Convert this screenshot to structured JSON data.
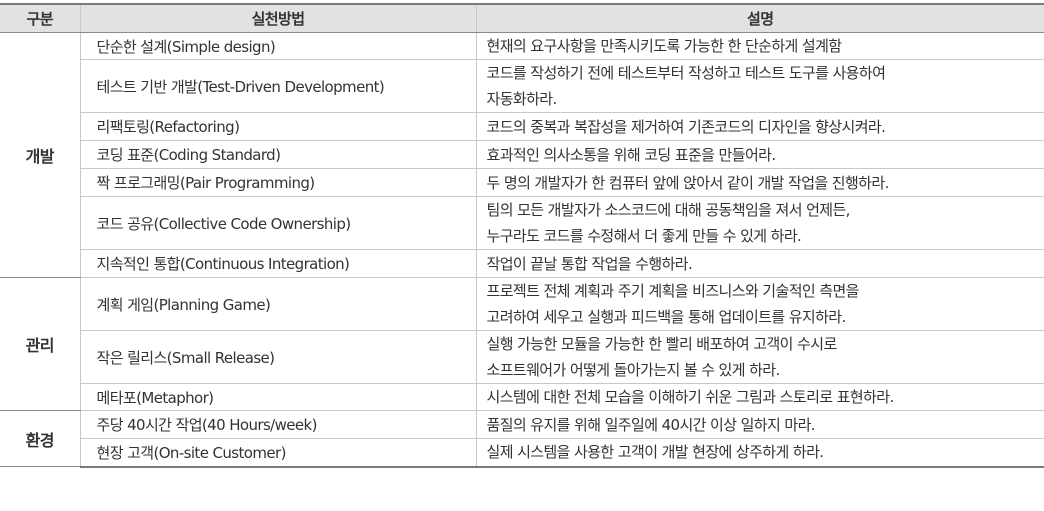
{
  "headers": [
    "구분",
    "실천방법",
    "설명"
  ],
  "groups": [
    {
      "category": "개발",
      "rows": [
        {
          "method": "단순한 설계(Simple design)",
          "desc": [
            "현재의 요구사항을 만족시키도록 가능한 한 단순하게 설계함"
          ]
        },
        {
          "method": "테스트 기반 개발(Test-Driven Development)",
          "desc": [
            "코드를 작성하기 전에 테스트부터 작성하고 테스트 도구를 사용하여",
            "자동화하라."
          ]
        },
        {
          "method": "리팩토링(Refactoring)",
          "desc": [
            "코드의 중복과 복잡성을 제거하여 기존코드의 디자인을 향상시켜라."
          ]
        },
        {
          "method": "코딩 표준(Coding Standard)",
          "desc": [
            "효과적인 의사소통을 위해 코딩 표준을 만들어라."
          ]
        },
        {
          "method": "짝 프로그래밍(Pair Programming)",
          "desc": [
            "두 명의 개발자가 한 컴퓨터 앞에 앉아서 같이 개발 작업을 진행하라."
          ]
        },
        {
          "method": "코드 공유(Collective Code Ownership)",
          "desc": [
            "팀의 모든 개발자가 소스코드에 대해 공동책임을 져서 언제든,",
            "누구라도 코드를 수정해서 더 좋게 만들 수 있게 하라."
          ]
        },
        {
          "method": "지속적인 통합(Continuous Integration)",
          "desc": [
            "작업이 끝날 통합 작업을 수행하라."
          ]
        }
      ]
    },
    {
      "category": "관리",
      "rows": [
        {
          "method": "계획 게임(Planning Game)",
          "desc": [
            "프로젝트 전체 계획과 주기 계획을 비즈니스와 기술적인 측면을",
            "고려하여 세우고 실행과 피드백을 통해 업데이트를 유지하라."
          ]
        },
        {
          "method": "작은 릴리스(Small Release)",
          "desc": [
            "실행 가능한 모듈을 가능한 한 빨리 배포하여 고객이 수시로",
            "소프트웨어가 어떻게 돌아가는지 볼 수 있게 하라."
          ]
        },
        {
          "method": "메타포(Metaphor)",
          "desc": [
            "시스템에 대한 전체 모습을 이해하기 쉬운 그림과 스토리로 표현하라."
          ]
        }
      ]
    },
    {
      "category": "환경",
      "rows": [
        {
          "method": "주당 40시간 작업(40 Hours/week)",
          "desc": [
            "품질의 유지를 위해 일주일에 40시간 이상 일하지 마라."
          ]
        },
        {
          "method": "현장 고객(On-site Customer)",
          "desc": [
            "실제 시스템을 사용한 고객이 개발 현장에 상주하게 하라."
          ]
        }
      ]
    }
  ]
}
